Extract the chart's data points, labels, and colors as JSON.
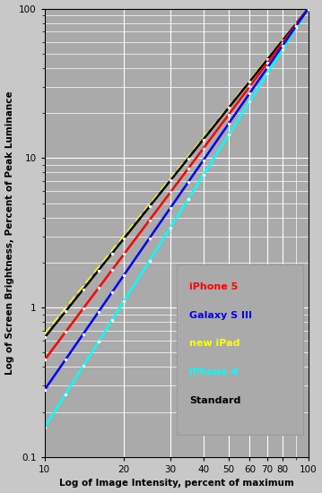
{
  "xlabel": "Log of Image Intensity, percent of maximum",
  "ylabel": "Log of Screen Brightness, Percent of Peak Luminance",
  "xlim": [
    10,
    100
  ],
  "ylim": [
    0.1,
    100
  ],
  "fig_bg": "#c8c8c8",
  "ax_bg": "#aaaaaa",
  "grid_color": "#ffffff",
  "series": [
    {
      "name": "new iPad",
      "color": "#ffff00",
      "gamma": 2.18,
      "lw": 2.0,
      "zorder": 3,
      "dashed": true
    },
    {
      "name": "Standard",
      "color": "#000000",
      "gamma": 2.2,
      "lw": 1.8,
      "zorder": 4,
      "dashed": false
    },
    {
      "name": "iPhone 5",
      "color": "#ff0000",
      "gamma": 2.35,
      "lw": 1.8,
      "zorder": 5,
      "dashed": false
    },
    {
      "name": "Galaxy S III",
      "color": "#0000ff",
      "gamma": 2.55,
      "lw": 1.8,
      "zorder": 6,
      "dashed": false
    },
    {
      "name": "iPhone 4",
      "color": "#00ffff",
      "gamma": 2.8,
      "lw": 1.8,
      "zorder": 2,
      "dashed": false
    }
  ],
  "x_points": [
    10,
    12,
    14,
    16,
    18,
    20,
    25,
    30,
    35,
    40,
    50,
    60,
    70,
    80,
    90,
    100
  ],
  "marker_color": "#ffffff",
  "marker_size": 2.5,
  "x_ticks": [
    10,
    20,
    30,
    40,
    50,
    60,
    70,
    80,
    100
  ],
  "y_ticks": [
    0.1,
    1,
    10,
    100
  ],
  "legend_items": [
    {
      "label": "iPhone 5",
      "color": "#ff0000"
    },
    {
      "label": "Galaxy S III",
      "color": "#0000ff"
    },
    {
      "label": "new iPad",
      "color": "#ffff00"
    },
    {
      "label": "iPhone 4",
      "color": "#00ffff"
    },
    {
      "label": "Standard",
      "color": "#000000"
    }
  ],
  "legend_bg": "#aaaaaa",
  "legend_edge": "#999999"
}
